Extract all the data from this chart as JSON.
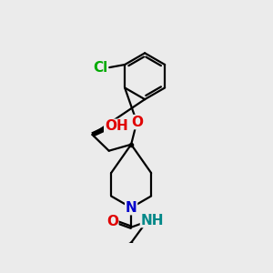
{
  "background_color": "#ebebeb",
  "atom_colors": {
    "C": "#000000",
    "O": "#e00000",
    "N": "#0000cc",
    "Cl": "#00aa00",
    "F": "#cc00cc",
    "H": "#008888"
  },
  "bond_color": "#000000",
  "bond_width": 1.6,
  "font_size_atoms": 11,
  "font_size_small": 10
}
